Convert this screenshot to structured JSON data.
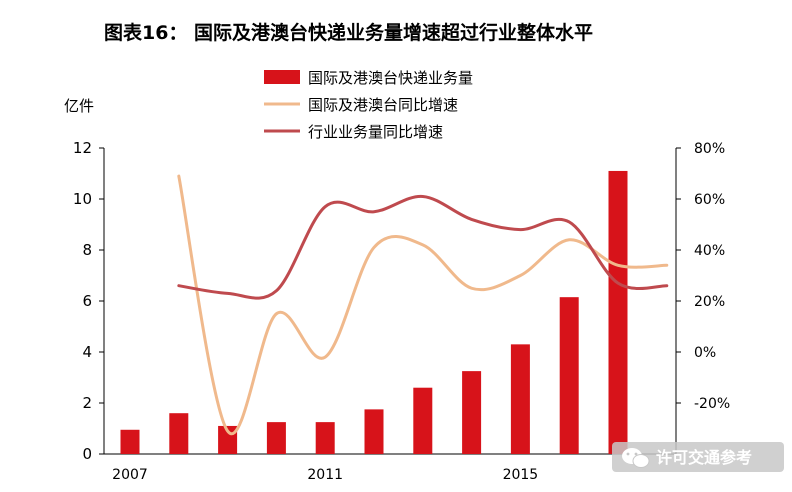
{
  "title": "图表16：  国际及港澳台快递业务量增速超过行业整体水平",
  "left_unit": "亿件",
  "watermark": "许可交通参考",
  "chart_data": {
    "type": "bar",
    "x": [
      2007,
      2008,
      2009,
      2010,
      2011,
      2012,
      2013,
      2014,
      2015,
      2016,
      2017
    ],
    "x_tick_labels": [
      "2007",
      "2011",
      "2015"
    ],
    "y_left_ticks": [
      "0",
      "2",
      "4",
      "6",
      "8",
      "10",
      "12"
    ],
    "y_right_ticks": [
      "-20%",
      "0%",
      "20%",
      "40%",
      "60%",
      "80%"
    ],
    "ylim_left": [
      0,
      12
    ],
    "ylim_right": [
      -40,
      80
    ],
    "legend_position": "top-center",
    "series": [
      {
        "name": "国际及港澳台快递业务量",
        "type": "bar",
        "axis": "left",
        "color": "#d7131a",
        "values": [
          0.95,
          1.6,
          1.1,
          1.25,
          1.25,
          1.75,
          2.6,
          3.25,
          4.3,
          6.15,
          11.1
        ]
      },
      {
        "name": "国际及港澳台同比增速",
        "type": "line",
        "axis": "right",
        "color": "#f0b98c",
        "values": [
          69,
          -31,
          15,
          -2,
          41,
          42,
          25,
          30,
          44,
          34,
          34
        ]
      },
      {
        "name": "行业业务量同比增速",
        "type": "line",
        "axis": "right",
        "color": "#bf4a4e",
        "values": [
          26,
          23,
          24,
          57,
          55,
          61,
          52,
          48,
          51,
          27,
          26
        ]
      }
    ]
  },
  "colors": {
    "bar": "#d7131a",
    "intl_growth": "#f0b98c",
    "industry_growth": "#bf4a4e",
    "watermark_bg": "#c8c8c8"
  }
}
